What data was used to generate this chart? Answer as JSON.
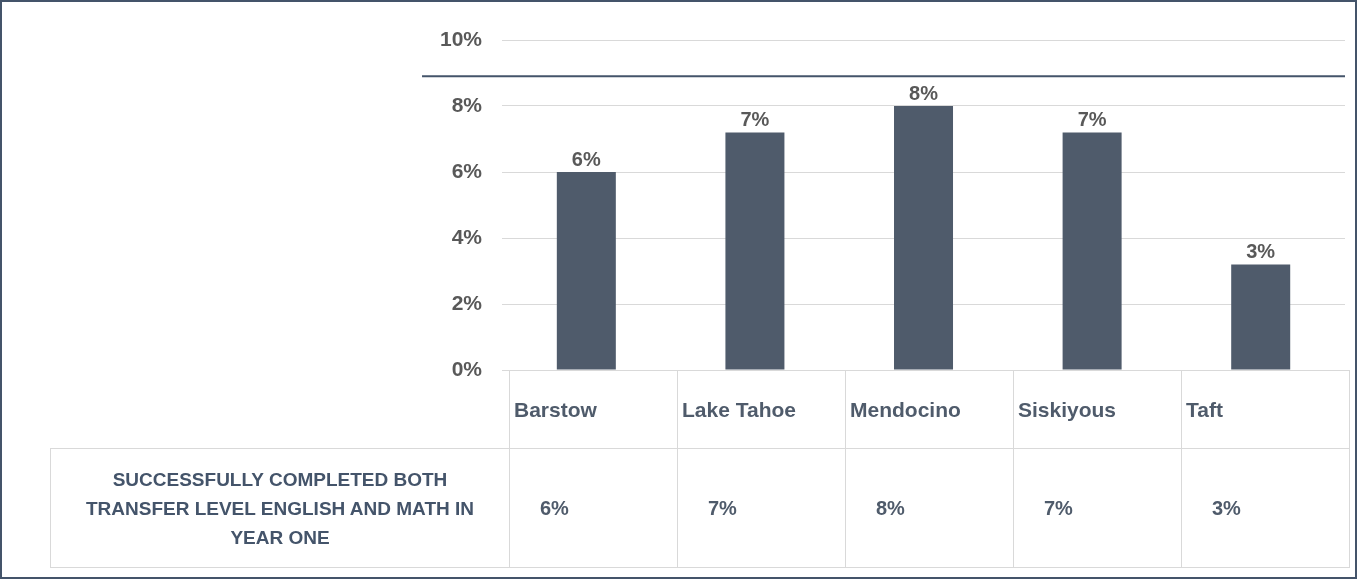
{
  "chart_data": {
    "type": "bar",
    "categories": [
      "Barstow",
      "Lake Tahoe",
      "Mendocino",
      "Siskiyous",
      "Taft"
    ],
    "series": [
      {
        "name": "SUCCESSFULLY COMPLETED BOTH TRANSFER LEVEL ENGLISH AND MATH IN YEAR ONE",
        "color": "#4f5b6b",
        "values": [
          6.0,
          7.2,
          8.0,
          7.2,
          3.2
        ],
        "value_labels": [
          "6%",
          "7%",
          "8%",
          "7%",
          "3%"
        ]
      }
    ],
    "ylim": [
      0,
      10
    ],
    "yticks": [
      {
        "value": 0,
        "label": "0%"
      },
      {
        "value": 2,
        "label": "2%"
      },
      {
        "value": 4,
        "label": "4%"
      },
      {
        "value": 6,
        "label": "6%"
      },
      {
        "value": 8,
        "label": "8%"
      },
      {
        "value": 10,
        "label": "10%"
      }
    ],
    "ref_lines": [
      {
        "axis": "y",
        "value": 8.9,
        "color": "#44546a"
      }
    ],
    "grid": "y",
    "legend": false
  }
}
